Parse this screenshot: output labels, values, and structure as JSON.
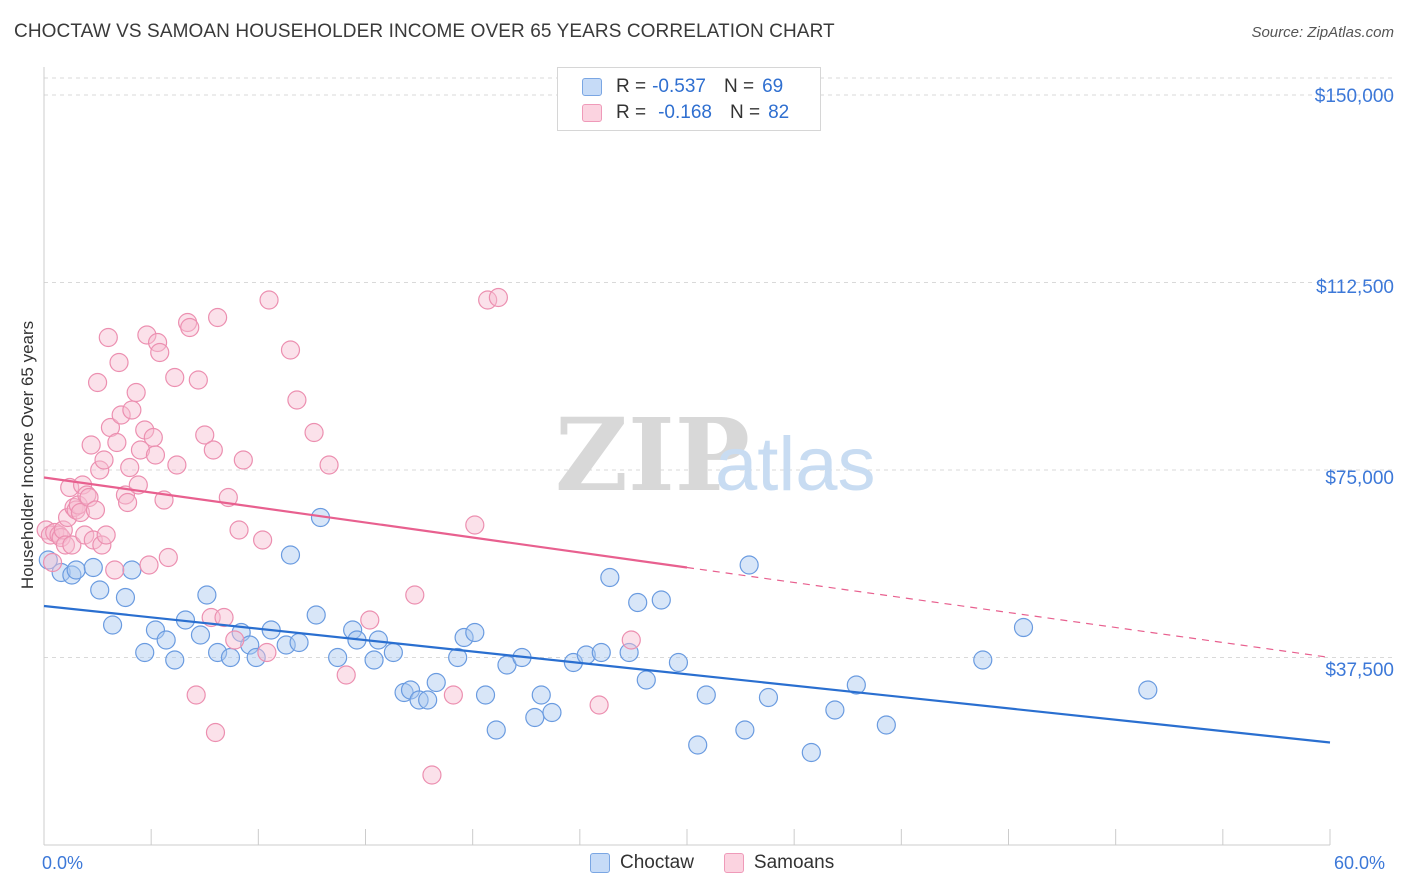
{
  "title": "CHOCTAW VS SAMOAN HOUSEHOLDER INCOME OVER 65 YEARS CORRELATION CHART",
  "source": "Source: ZipAtlas.com",
  "watermark": {
    "zip": "ZIP",
    "atlas": "atlas"
  },
  "legend": {
    "rows": [
      {
        "r_label": "R =",
        "r_value": "-0.537",
        "n_label": "N =",
        "n_value": "69"
      },
      {
        "r_label": "R =",
        "r_value": "-0.168",
        "n_label": "N =",
        "n_value": "82"
      }
    ]
  },
  "colors": {
    "choctaw_fill": "#a9c8f0",
    "choctaw_stroke": "#6a9be0",
    "choctaw_line": "#2a6fd0",
    "samoan_fill": "#f7bcd0",
    "samoan_stroke": "#ec8fb0",
    "samoan_line": "#e8608f",
    "tick_text": "#3c78d8",
    "grid": "#d9d9d9"
  },
  "chart_data": {
    "type": "scatter",
    "title": "CHOCTAW VS SAMOAN HOUSEHOLDER INCOME OVER 65 YEARS CORRELATION CHART",
    "xlabel": "",
    "ylabel": "Householder Income Over 65 years",
    "xlim": [
      0,
      60
    ],
    "ylim": [
      0,
      155000
    ],
    "x_tick_labels": [
      "0.0%",
      "60.0%"
    ],
    "y_ticks": [
      37500,
      75000,
      112500,
      150000
    ],
    "y_tick_labels": [
      "$37,500",
      "$75,000",
      "$112,500",
      "$150,000"
    ],
    "grid": true,
    "legend_position": "top-center",
    "series": [
      {
        "name": "Choctaw",
        "r": -0.537,
        "n": 69,
        "trend": {
          "x": [
            0,
            60
          ],
          "y": [
            47800,
            20500
          ],
          "dashed_from": null
        },
        "points": [
          [
            0.2,
            57000
          ],
          [
            0.8,
            54500
          ],
          [
            1.3,
            54000
          ],
          [
            1.5,
            55000
          ],
          [
            2.3,
            55500
          ],
          [
            2.6,
            51000
          ],
          [
            3.2,
            44000
          ],
          [
            3.8,
            49500
          ],
          [
            4.1,
            55000
          ],
          [
            4.7,
            38500
          ],
          [
            5.2,
            43000
          ],
          [
            5.7,
            41000
          ],
          [
            6.1,
            37000
          ],
          [
            6.6,
            45000
          ],
          [
            7.3,
            42000
          ],
          [
            7.6,
            50000
          ],
          [
            8.1,
            38500
          ],
          [
            8.7,
            37500
          ],
          [
            9.2,
            42500
          ],
          [
            9.6,
            40000
          ],
          [
            9.9,
            37500
          ],
          [
            10.6,
            43000
          ],
          [
            11.3,
            40000
          ],
          [
            11.5,
            58000
          ],
          [
            11.9,
            40500
          ],
          [
            12.7,
            46000
          ],
          [
            12.9,
            65500
          ],
          [
            13.7,
            37500
          ],
          [
            14.4,
            43000
          ],
          [
            14.6,
            41000
          ],
          [
            15.4,
            37000
          ],
          [
            15.6,
            41000
          ],
          [
            16.3,
            38500
          ],
          [
            16.8,
            30500
          ],
          [
            17.1,
            31000
          ],
          [
            17.5,
            29000
          ],
          [
            17.9,
            29000
          ],
          [
            18.3,
            32500
          ],
          [
            19.3,
            37500
          ],
          [
            19.6,
            41500
          ],
          [
            20.1,
            42500
          ],
          [
            20.6,
            30000
          ],
          [
            21.1,
            23000
          ],
          [
            21.6,
            36000
          ],
          [
            22.3,
            37500
          ],
          [
            22.9,
            25500
          ],
          [
            23.2,
            30000
          ],
          [
            23.7,
            26500
          ],
          [
            24.7,
            36500
          ],
          [
            25.3,
            38000
          ],
          [
            26.0,
            38500
          ],
          [
            26.4,
            53500
          ],
          [
            27.3,
            38500
          ],
          [
            27.7,
            48500
          ],
          [
            28.1,
            33000
          ],
          [
            28.8,
            49000
          ],
          [
            29.6,
            36500
          ],
          [
            30.5,
            20000
          ],
          [
            30.9,
            30000
          ],
          [
            32.7,
            23000
          ],
          [
            32.9,
            56000
          ],
          [
            33.8,
            29500
          ],
          [
            35.8,
            18500
          ],
          [
            36.9,
            27000
          ],
          [
            37.9,
            32000
          ],
          [
            39.3,
            24000
          ],
          [
            43.8,
            37000
          ],
          [
            45.7,
            43500
          ],
          [
            51.5,
            31000
          ]
        ]
      },
      {
        "name": "Samoans",
        "r": -0.168,
        "n": 82,
        "trend": {
          "x": [
            0,
            60
          ],
          "y": [
            73500,
            37500
          ],
          "dashed_from": 30
        },
        "points": [
          [
            0.1,
            63000
          ],
          [
            0.3,
            62000
          ],
          [
            0.4,
            56500
          ],
          [
            0.5,
            62500
          ],
          [
            0.7,
            62000
          ],
          [
            0.8,
            61500
          ],
          [
            0.9,
            63000
          ],
          [
            1.0,
            60000
          ],
          [
            1.1,
            65500
          ],
          [
            1.2,
            71500
          ],
          [
            1.3,
            60000
          ],
          [
            1.4,
            67500
          ],
          [
            1.5,
            67000
          ],
          [
            1.6,
            68000
          ],
          [
            1.7,
            66500
          ],
          [
            1.8,
            72000
          ],
          [
            1.9,
            62000
          ],
          [
            2.0,
            70000
          ],
          [
            2.1,
            69500
          ],
          [
            2.2,
            80000
          ],
          [
            2.3,
            61000
          ],
          [
            2.4,
            67000
          ],
          [
            2.5,
            92500
          ],
          [
            2.6,
            75000
          ],
          [
            2.7,
            60000
          ],
          [
            2.8,
            77000
          ],
          [
            2.9,
            62000
          ],
          [
            3.0,
            101500
          ],
          [
            3.1,
            83500
          ],
          [
            3.3,
            55000
          ],
          [
            3.4,
            80500
          ],
          [
            3.5,
            96500
          ],
          [
            3.6,
            86000
          ],
          [
            3.8,
            70000
          ],
          [
            3.9,
            68500
          ],
          [
            4.0,
            75500
          ],
          [
            4.1,
            87000
          ],
          [
            4.3,
            90500
          ],
          [
            4.4,
            72000
          ],
          [
            4.5,
            79000
          ],
          [
            4.7,
            83000
          ],
          [
            4.8,
            102000
          ],
          [
            4.9,
            56000
          ],
          [
            5.1,
            81500
          ],
          [
            5.2,
            78000
          ],
          [
            5.3,
            100500
          ],
          [
            5.4,
            98500
          ],
          [
            5.6,
            69000
          ],
          [
            5.8,
            57500
          ],
          [
            6.1,
            93500
          ],
          [
            6.2,
            76000
          ],
          [
            6.7,
            104500
          ],
          [
            6.8,
            103500
          ],
          [
            7.1,
            30000
          ],
          [
            7.2,
            93000
          ],
          [
            7.5,
            82000
          ],
          [
            7.8,
            45500
          ],
          [
            7.9,
            79000
          ],
          [
            8.0,
            22500
          ],
          [
            8.1,
            105500
          ],
          [
            8.4,
            45500
          ],
          [
            8.6,
            69500
          ],
          [
            8.9,
            41000
          ],
          [
            9.1,
            63000
          ],
          [
            9.3,
            77000
          ],
          [
            10.2,
            61000
          ],
          [
            10.4,
            38500
          ],
          [
            10.5,
            109000
          ],
          [
            11.5,
            99000
          ],
          [
            11.8,
            89000
          ],
          [
            12.6,
            82500
          ],
          [
            13.3,
            76000
          ],
          [
            14.1,
            34000
          ],
          [
            15.2,
            45000
          ],
          [
            17.3,
            50000
          ],
          [
            18.1,
            14000
          ],
          [
            19.1,
            30000
          ],
          [
            20.1,
            64000
          ],
          [
            20.7,
            109000
          ],
          [
            21.2,
            109500
          ],
          [
            25.9,
            28000
          ],
          [
            27.4,
            41000
          ]
        ]
      }
    ]
  },
  "bottom_legend": [
    {
      "label": "Choctaw"
    },
    {
      "label": "Samoans"
    }
  ]
}
